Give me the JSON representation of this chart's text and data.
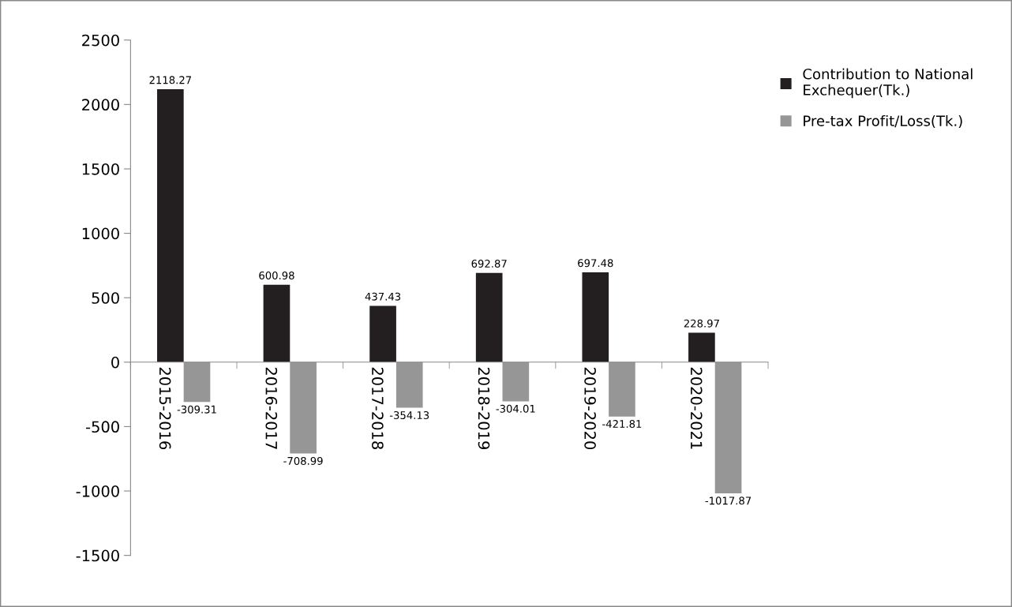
{
  "chart_data": {
    "type": "bar",
    "categories": [
      "2015-2016",
      "2016-2017",
      "2017-2018",
      "2018-2019",
      "2019-2020",
      "2020-2021"
    ],
    "series": [
      {
        "name": "Contribution to National Exchequer(Tk.)",
        "color": "#231f20",
        "values": [
          2118.27,
          600.98,
          437.43,
          692.87,
          697.48,
          228.97
        ]
      },
      {
        "name": "Pre-tax Profit/Loss(Tk.)",
        "color": "#969696",
        "values": [
          -309.31,
          -708.99,
          -354.13,
          -304.01,
          -421.81,
          -1017.87
        ]
      }
    ],
    "ylim": [
      -1500,
      2500
    ],
    "yticks": [
      -1500,
      -1000,
      -500,
      0,
      500,
      1000,
      1500,
      2000,
      2500
    ],
    "data_labels": true,
    "grid": false,
    "legend": "top right"
  }
}
